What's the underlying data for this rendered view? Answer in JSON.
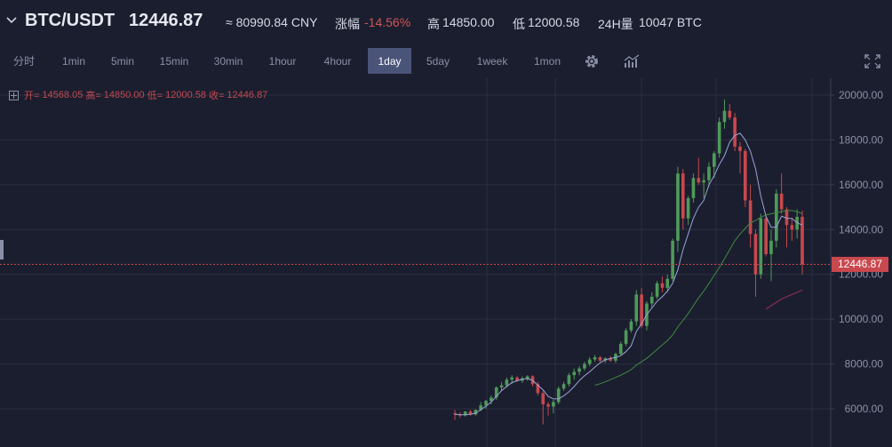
{
  "header": {
    "pair": "BTC/USDT",
    "last_price": "12446.87",
    "cny": "≈ 80990.84 CNY",
    "change_label": "涨幅",
    "change_value": "-14.56%",
    "high_label": "高",
    "high_value": "14850.00",
    "low_label": "低",
    "low_value": "12000.58",
    "volume_label": "24H量",
    "volume_value": "10047 BTC"
  },
  "toolbar": {
    "timeframes": [
      "分时",
      "1min",
      "5min",
      "15min",
      "30min",
      "1hour",
      "4hour",
      "1day",
      "5day",
      "1week",
      "1mon"
    ],
    "active": "1day",
    "settings_icon": "gear-icon",
    "indicator_icon": "bar-chart-icon",
    "fullscreen_icon": "expand-icon"
  },
  "ohlc": {
    "open_label": "开=",
    "open": "14568.05",
    "high_label": "高=",
    "high": "14850.00",
    "low_label": "低=",
    "low": "12000.58",
    "close_label": "收=",
    "close": "12446.87"
  },
  "colors": {
    "background": "#1b1e2e",
    "up": "#4f9a5a",
    "down": "#c8484d",
    "ma_short": "#9aa3d8",
    "ma_mid": "#3f8a44",
    "ma_long": "#a0305a",
    "grid": "#2a2e42",
    "price_line": "#c8484d"
  },
  "chart_data": {
    "type": "candlestick",
    "ylim": [
      5000,
      20400
    ],
    "y_ticks": [
      "20000.00",
      "18000.00",
      "16000.00",
      "14000.00",
      "12000.00",
      "10000.00",
      "8000.00",
      "6000.00"
    ],
    "y_tick_values": [
      20000,
      18000,
      16000,
      14000,
      12000,
      10000,
      8000,
      6000
    ],
    "current_price": 12446.87,
    "current_price_label": "12446.87",
    "grid": true,
    "candles": [
      [
        5800,
        5950,
        5500,
        5750
      ],
      [
        5750,
        5850,
        5600,
        5700
      ],
      [
        5700,
        5900,
        5650,
        5880
      ],
      [
        5880,
        5950,
        5700,
        5750
      ],
      [
        5750,
        5980,
        5700,
        5950
      ],
      [
        5950,
        6300,
        5900,
        6150
      ],
      [
        6150,
        6400,
        6000,
        6350
      ],
      [
        6350,
        6600,
        6200,
        6500
      ],
      [
        6500,
        7000,
        6400,
        6950
      ],
      [
        6950,
        7200,
        6800,
        7050
      ],
      [
        7050,
        7400,
        6950,
        7300
      ],
      [
        7300,
        7500,
        7100,
        7400
      ],
      [
        7400,
        7450,
        7200,
        7250
      ],
      [
        7250,
        7450,
        7150,
        7350
      ],
      [
        7350,
        7500,
        7250,
        7450
      ],
      [
        7450,
        7500,
        7000,
        7100
      ],
      [
        7100,
        7200,
        6600,
        6700
      ],
      [
        6700,
        6800,
        5300,
        6200
      ],
      [
        6200,
        6300,
        5700,
        6100
      ],
      [
        6100,
        6400,
        5800,
        6300
      ],
      [
        6300,
        7000,
        6200,
        6900
      ],
      [
        6900,
        7200,
        6800,
        7100
      ],
      [
        7100,
        7600,
        7000,
        7500
      ],
      [
        7500,
        7800,
        7300,
        7650
      ],
      [
        7650,
        7900,
        7500,
        7800
      ],
      [
        7800,
        8100,
        7700,
        8000
      ],
      [
        8000,
        8300,
        7900,
        8200
      ],
      [
        8200,
        8400,
        8100,
        8300
      ],
      [
        8300,
        8350,
        8100,
        8150
      ],
      [
        8150,
        8300,
        8050,
        8250
      ],
      [
        8250,
        8350,
        8100,
        8150
      ],
      [
        8150,
        8500,
        8050,
        8450
      ],
      [
        8450,
        9000,
        8400,
        8900
      ],
      [
        8900,
        9600,
        8800,
        9500
      ],
      [
        9500,
        10000,
        9400,
        9900
      ],
      [
        9900,
        11300,
        9700,
        11100
      ],
      [
        11100,
        11400,
        9600,
        9700
      ],
      [
        9700,
        10800,
        9500,
        10700
      ],
      [
        10700,
        11200,
        10500,
        11000
      ],
      [
        11000,
        11700,
        10900,
        11600
      ],
      [
        11600,
        11900,
        11200,
        11400
      ],
      [
        11400,
        12000,
        11200,
        11800
      ],
      [
        11800,
        13600,
        11700,
        13500
      ],
      [
        13500,
        16800,
        13000,
        16500
      ],
      [
        16500,
        16700,
        14000,
        14500
      ],
      [
        14500,
        15500,
        14200,
        15400
      ],
      [
        15400,
        16500,
        15200,
        16300
      ],
      [
        16300,
        17200,
        16000,
        16100
      ],
      [
        16100,
        16500,
        15400,
        16200
      ],
      [
        16200,
        17000,
        15900,
        16800
      ],
      [
        16800,
        17500,
        16300,
        17400
      ],
      [
        17400,
        19000,
        17200,
        18800
      ],
      [
        18800,
        19800,
        18500,
        19300
      ],
      [
        19300,
        19600,
        18900,
        19000
      ],
      [
        19000,
        19200,
        17500,
        17700
      ],
      [
        17700,
        17900,
        16500,
        17500
      ],
      [
        17500,
        17600,
        15000,
        15300
      ],
      [
        15300,
        16000,
        13200,
        13800
      ],
      [
        13800,
        14000,
        11000,
        12000
      ],
      [
        12000,
        14700,
        11800,
        14500
      ],
      [
        14500,
        14700,
        12800,
        12900
      ],
      [
        12900,
        14000,
        11700,
        13500
      ],
      [
        13500,
        15800,
        13200,
        15600
      ],
      [
        15600,
        16500,
        14700,
        14900
      ],
      [
        14900,
        15000,
        13200,
        14200
      ],
      [
        14200,
        14500,
        13500,
        14000
      ],
      [
        14000,
        14900,
        13600,
        14568
      ],
      [
        14568,
        14850,
        12000,
        12447
      ]
    ],
    "ma_short": [
      5750,
      5730,
      5740,
      5755,
      5805,
      5960,
      6120,
      6300,
      6560,
      6810,
      7000,
      7170,
      7250,
      7330,
      7350,
      7270,
      7050,
      6850,
      6550,
      6440,
      6450,
      6580,
      6760,
      6990,
      7260,
      7470,
      7650,
      7860,
      8050,
      8180,
      8250,
      8290,
      8370,
      8550,
      8810,
      9450,
      9800,
      10200,
      10500,
      10800,
      11000,
      11250,
      11600,
      12200,
      13100,
      13800,
      14500,
      15000,
      15300,
      16000,
      16400,
      16900,
      17300,
      17900,
      18200,
      18300,
      18000,
      17500,
      16700,
      15500,
      14600,
      14100,
      14100,
      14600,
      14500,
      14500,
      14300,
      14200
    ],
    "ma_mid": [
      null,
      null,
      null,
      null,
      null,
      null,
      null,
      null,
      null,
      null,
      null,
      null,
      null,
      null,
      null,
      null,
      null,
      null,
      null,
      null,
      null,
      null,
      null,
      null,
      null,
      null,
      null,
      7050,
      7120,
      7200,
      7300,
      7400,
      7500,
      7620,
      7750,
      7950,
      8100,
      8250,
      8450,
      8650,
      8850,
      9050,
      9300,
      9650,
      9950,
      10250,
      10600,
      10950,
      11250,
      11600,
      11950,
      12300,
      12700,
      13100,
      13500,
      13800,
      14050,
      14300,
      14400,
      14550,
      14650,
      14700,
      14750,
      14800,
      14850,
      14850,
      14800,
      14700
    ],
    "ma_long": [
      null,
      null,
      null,
      null,
      null,
      null,
      null,
      null,
      null,
      null,
      null,
      null,
      null,
      null,
      null,
      null,
      null,
      null,
      null,
      null,
      null,
      null,
      null,
      null,
      null,
      null,
      null,
      null,
      null,
      null,
      null,
      null,
      null,
      null,
      null,
      null,
      null,
      null,
      null,
      null,
      null,
      null,
      null,
      null,
      null,
      null,
      null,
      null,
      null,
      null,
      null,
      null,
      null,
      null,
      null,
      null,
      null,
      null,
      null,
      null,
      10450,
      10600,
      10750,
      10900,
      11000,
      11100,
      11200,
      11300
    ]
  }
}
